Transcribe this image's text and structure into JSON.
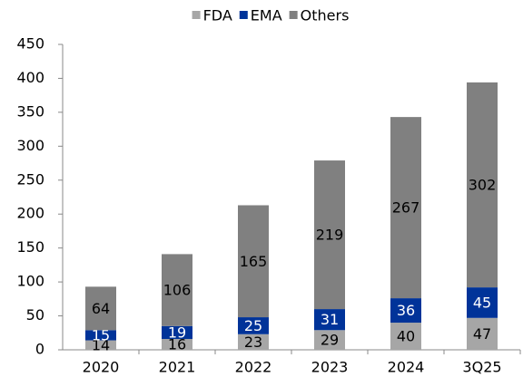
{
  "chart_data": {
    "type": "stacked_bar",
    "categories": [
      "2020",
      "2021",
      "2022",
      "2023",
      "2024",
      "3Q25"
    ],
    "series": [
      {
        "name": "FDA",
        "color": "#a6a6a6",
        "values": [
          14,
          16,
          23,
          29,
          40,
          47
        ]
      },
      {
        "name": "EMA",
        "color": "#003399",
        "values": [
          15,
          19,
          25,
          31,
          36,
          45
        ]
      },
      {
        "name": "Others",
        "color": "#808080",
        "values": [
          64,
          106,
          165,
          219,
          267,
          302
        ]
      }
    ],
    "ylim": [
      0,
      450
    ],
    "yticks": [
      0,
      50,
      100,
      150,
      200,
      250,
      300,
      350,
      400,
      450
    ],
    "grid": false,
    "legend": "top"
  }
}
